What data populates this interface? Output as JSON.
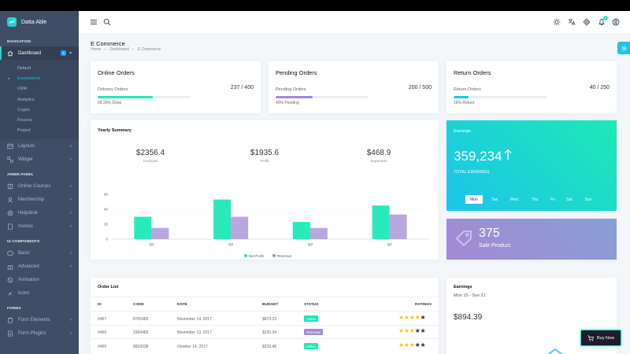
{
  "brand": {
    "name": "Datta Able"
  },
  "sidebar": {
    "sections": [
      {
        "caption": "Navigation"
      },
      {
        "caption": "Admin Panel"
      },
      {
        "caption": "UI Components"
      },
      {
        "caption": "Forms"
      }
    ],
    "dashboard": {
      "label": "Dashboard",
      "badge": "5"
    },
    "dashboard_sub": [
      "Default",
      "Ecommerce",
      "CRM",
      "Analytics",
      "Crypto",
      "Finance",
      "Project"
    ],
    "items_nav": [
      {
        "label": "Layouts"
      },
      {
        "label": "Widget"
      }
    ],
    "items_admin": [
      {
        "label": "Online Courses"
      },
      {
        "label": "Membership"
      },
      {
        "label": "Helpdesk"
      },
      {
        "label": "Invoice"
      }
    ],
    "items_ui": [
      {
        "label": "Basic"
      },
      {
        "label": "Advanced"
      },
      {
        "label": "Animation"
      },
      {
        "label": "Icons"
      }
    ],
    "items_forms": [
      {
        "label": "Form Elements"
      },
      {
        "label": "Form Plugins"
      }
    ]
  },
  "header": {
    "notif_count": "3"
  },
  "page": {
    "title": "E Commerce",
    "breadcrumb": [
      "Home",
      "Dashboard",
      "E Commerce"
    ]
  },
  "orders": [
    {
      "title": "Online Orders",
      "sub": "Delivery Orders",
      "value": "237 / 400",
      "foot": "59.25% Done",
      "progress": 0.5925,
      "color": "#1de9b6"
    },
    {
      "title": "Pending Orders",
      "sub": "Pending Orders",
      "value": "200 / 500",
      "foot": "40% Pending",
      "progress": 0.4,
      "color": "#a389d4"
    },
    {
      "title": "Return Orders",
      "sub": "Return Orders",
      "value": "40 / 250",
      "foot": "16% Return",
      "progress": 0.16,
      "color": "#1dc4e9"
    }
  ],
  "yearly": {
    "title": "Yearly Summary",
    "stats": [
      {
        "value": "$2356.4",
        "label": "Invoiced"
      },
      {
        "value": "$1935.6",
        "label": "Profit"
      },
      {
        "value": "$468.9",
        "label": "Expenses"
      }
    ]
  },
  "chart_data": {
    "type": "bar",
    "categories": [
      "Q1",
      "Q2",
      "Q3",
      "Q4"
    ],
    "series": [
      {
        "name": "Net Profit",
        "values": [
          30,
          53,
          23,
          45
        ],
        "color": "#1de9b6"
      },
      {
        "name": "Revenue",
        "values": [
          15,
          30,
          15,
          33
        ],
        "color": "#a389d4"
      }
    ],
    "ylim": [
      0,
      60
    ],
    "yticks": [
      0,
      20,
      40,
      60
    ],
    "legend": "bottom"
  },
  "earnings_green": {
    "title": "Earnings",
    "value": "359,234",
    "label": "TOTAL EARNINGS",
    "days": [
      "Mon",
      "Tue",
      "Wed",
      "Thu",
      "Fri",
      "Sat",
      "Sun"
    ],
    "active_day": "Mon"
  },
  "sale_product": {
    "value": "375",
    "label": "Sale Product"
  },
  "order_list": {
    "title": "Order List",
    "headers": {
      "id": "ID",
      "code": "CODE",
      "date": "DATE",
      "budget": "BUDGET",
      "status": "STATUS",
      "ratings": "RATINGS"
    },
    "rows": [
      {
        "id": "#467",
        "code": "8765482",
        "date": "November 14, 2017",
        "budget": "$874.23",
        "status": "Active",
        "status_color": "#1de9b6",
        "rating": 4
      },
      {
        "id": "#466",
        "code": "2366482",
        "date": "November 13, 2017",
        "budget": "$235.34",
        "status": "NotActive",
        "status_color": "#a389d4",
        "rating": 3
      },
      {
        "id": "#465",
        "code": "8832638",
        "date": "October 14, 2017",
        "budget": "$233.46",
        "status": "Active",
        "status_color": "#1de9b6",
        "rating": 3
      }
    ]
  },
  "earnings_card": {
    "title": "Earnings",
    "range": "Mon 15 - Sun 21",
    "value": "$894.39"
  },
  "buy_now": {
    "label": "Buy Now"
  },
  "colors": {
    "sidebar": "#3f4d67",
    "accent_green": "#1de9b6",
    "accent_blue": "#1dc4e9",
    "accent_purple": "#a389d4"
  }
}
